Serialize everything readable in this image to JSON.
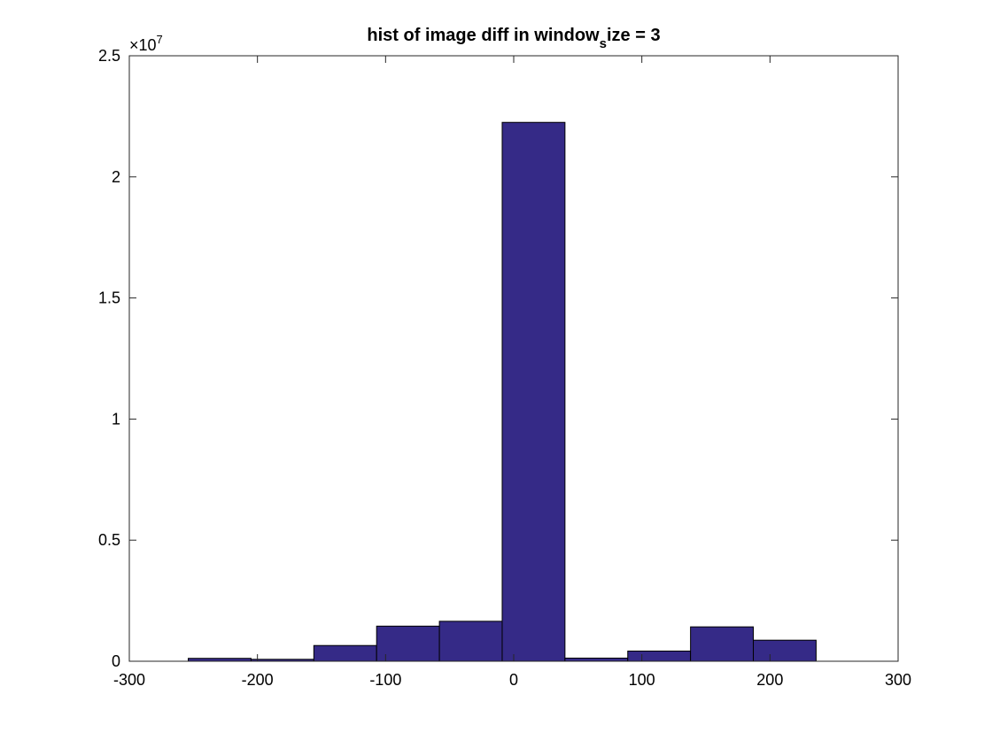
{
  "chart_data": {
    "type": "bar",
    "title": "hist of image diff in window",
    "title_subscript": "s",
    "title_suffix": "ize = 3",
    "xlabel": "",
    "ylabel": "",
    "y_exponent_label": "×10",
    "y_exponent_power": "7",
    "xlim": [
      -300,
      300
    ],
    "ylim": [
      0,
      25000000
    ],
    "grid": false,
    "legend": "none",
    "bar_color": "#352A87",
    "edge_color": "#000000",
    "x_ticks": [
      -300,
      -200,
      -100,
      0,
      100,
      200,
      300
    ],
    "x_tick_labels": [
      "-300",
      "-200",
      "-100",
      "0",
      "100",
      "200",
      "300"
    ],
    "y_ticks": [
      0,
      5000000,
      10000000,
      15000000,
      20000000,
      25000000
    ],
    "y_tick_labels": [
      "0",
      "0.5",
      "1",
      "1.5",
      "2",
      "2.5"
    ],
    "bins": [
      {
        "x0": -254,
        "x1": -205,
        "value": 120000
      },
      {
        "x0": -205,
        "x1": -156,
        "value": 80000
      },
      {
        "x0": -156,
        "x1": -107,
        "value": 650000
      },
      {
        "x0": -107,
        "x1": -58,
        "value": 1450000
      },
      {
        "x0": -58,
        "x1": -9,
        "value": 1650000
      },
      {
        "x0": -9,
        "x1": 40,
        "value": 22250000
      },
      {
        "x0": 40,
        "x1": 89,
        "value": 130000
      },
      {
        "x0": 89,
        "x1": 138,
        "value": 420000
      },
      {
        "x0": 138,
        "x1": 187,
        "value": 1420000
      },
      {
        "x0": 187,
        "x1": 236,
        "value": 870000
      }
    ]
  }
}
